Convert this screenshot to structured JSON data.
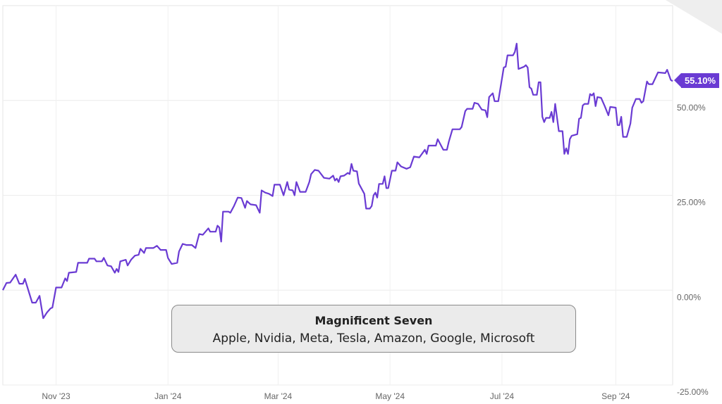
{
  "chart_data": {
    "type": "line",
    "title": "",
    "xlabel": "",
    "ylabel": "",
    "xlim": [
      "2023-10-03",
      "2024-10-02"
    ],
    "ylim": [
      -25,
      75
    ],
    "grid": true,
    "x_tick_labels": [
      {
        "date": "2023-11-01",
        "label": "Nov '23"
      },
      {
        "date": "2024-01-01",
        "label": "Jan '24"
      },
      {
        "date": "2024-03-01",
        "label": "Mar '24"
      },
      {
        "date": "2024-05-01",
        "label": "May '24"
      },
      {
        "date": "2024-07-01",
        "label": "Jul '24"
      },
      {
        "date": "2024-09-01",
        "label": "Sep '24"
      }
    ],
    "y_tick_labels": [
      {
        "value": 50,
        "label": "50.00%"
      },
      {
        "value": 25,
        "label": "25.00%"
      },
      {
        "value": 0,
        "label": "0.00%"
      },
      {
        "value": -25,
        "label": "-25.00%"
      }
    ],
    "last_value_label": "55.10%",
    "series_color": "#6a3bd3",
    "legend": {
      "title": "Magnificent Seven",
      "subtitle": "Apple, Nvidia, Meta, Tesla, Amazon, Google, Microsoft"
    },
    "series": [
      {
        "points": [
          [
            "2023-10-03",
            0
          ],
          [
            "2023-10-05",
            1.9
          ],
          [
            "2023-10-07",
            2
          ],
          [
            "2023-10-10",
            4.1
          ],
          [
            "2023-10-12",
            1.7
          ],
          [
            "2023-10-14",
            1.7
          ],
          [
            "2023-10-15",
            3
          ],
          [
            "2023-10-19",
            -3.3
          ],
          [
            "2023-10-21",
            -3.3
          ],
          [
            "2023-10-23",
            -1.5
          ],
          [
            "2023-10-25",
            -7.4
          ],
          [
            "2023-10-27",
            -5.9
          ],
          [
            "2023-10-29",
            -4.8
          ],
          [
            "2023-10-30",
            -4.6
          ],
          [
            "2023-11-01",
            0.7
          ],
          [
            "2023-11-04",
            0.7
          ],
          [
            "2023-11-06",
            3.1
          ],
          [
            "2023-11-07",
            2.4
          ],
          [
            "2023-11-08",
            4.6
          ],
          [
            "2023-11-12",
            4.8
          ],
          [
            "2023-11-13",
            7.2
          ],
          [
            "2023-11-15",
            7.2
          ],
          [
            "2023-11-18",
            7.2
          ],
          [
            "2023-11-19",
            8.3
          ],
          [
            "2023-11-22",
            8.3
          ],
          [
            "2023-11-23",
            7.6
          ],
          [
            "2023-11-26",
            7.6
          ],
          [
            "2023-11-27",
            8.5
          ],
          [
            "2023-11-29",
            6.5
          ],
          [
            "2023-12-01",
            6.3
          ],
          [
            "2023-12-03",
            4.6
          ],
          [
            "2023-12-04",
            5.6
          ],
          [
            "2023-12-05",
            4.8
          ],
          [
            "2023-12-06",
            7.6
          ],
          [
            "2023-12-09",
            8
          ],
          [
            "2023-12-10",
            6.5
          ],
          [
            "2023-12-12",
            8.1
          ],
          [
            "2023-12-14",
            9.1
          ],
          [
            "2023-12-16",
            9.3
          ],
          [
            "2023-12-17",
            10.9
          ],
          [
            "2023-12-19",
            9.8
          ],
          [
            "2023-12-20",
            11.1
          ],
          [
            "2023-12-24",
            11.1
          ],
          [
            "2023-12-26",
            11.7
          ],
          [
            "2023-12-28",
            10.6
          ],
          [
            "2023-12-31",
            10.6
          ],
          [
            "2024-01-01",
            8.5
          ],
          [
            "2024-01-03",
            6.9
          ],
          [
            "2024-01-06",
            7.2
          ],
          [
            "2024-01-07",
            10.2
          ],
          [
            "2024-01-09",
            12.2
          ],
          [
            "2024-01-11",
            11.9
          ],
          [
            "2024-01-14",
            11.9
          ],
          [
            "2024-01-16",
            11.1
          ],
          [
            "2024-01-18",
            14.8
          ],
          [
            "2024-01-20",
            14.6
          ],
          [
            "2024-01-23",
            16.3
          ],
          [
            "2024-01-24",
            15.4
          ],
          [
            "2024-01-27",
            15.4
          ],
          [
            "2024-01-28",
            17
          ],
          [
            "2024-01-29",
            16.5
          ],
          [
            "2024-01-30",
            12.8
          ],
          [
            "2024-01-31",
            20.7
          ],
          [
            "2024-02-03",
            20.7
          ],
          [
            "2024-02-04",
            20.4
          ],
          [
            "2024-02-06",
            22.2
          ],
          [
            "2024-02-08",
            24.4
          ],
          [
            "2024-02-10",
            24.3
          ],
          [
            "2024-02-12",
            21.7
          ],
          [
            "2024-02-13",
            23.5
          ],
          [
            "2024-02-15",
            22.6
          ],
          [
            "2024-02-18",
            22.4
          ],
          [
            "2024-02-20",
            20.4
          ],
          [
            "2024-02-21",
            26.3
          ],
          [
            "2024-02-23",
            25.7
          ],
          [
            "2024-02-25",
            25.4
          ],
          [
            "2024-02-27",
            24.8
          ],
          [
            "2024-02-28",
            27.8
          ],
          [
            "2024-03-02",
            27.8
          ],
          [
            "2024-03-04",
            25
          ],
          [
            "2024-03-06",
            28.5
          ],
          [
            "2024-03-07",
            26.5
          ],
          [
            "2024-03-09",
            26.3
          ],
          [
            "2024-03-10",
            25
          ],
          [
            "2024-03-11",
            28.5
          ],
          [
            "2024-03-13",
            25.9
          ],
          [
            "2024-03-16",
            25.9
          ],
          [
            "2024-03-18",
            28.5
          ],
          [
            "2024-03-19",
            30.6
          ],
          [
            "2024-03-21",
            31.7
          ],
          [
            "2024-03-23",
            31.5
          ],
          [
            "2024-03-26",
            29.6
          ],
          [
            "2024-03-29",
            29.4
          ],
          [
            "2024-03-31",
            30.2
          ],
          [
            "2024-04-01",
            28.9
          ],
          [
            "2024-04-02",
            29.4
          ],
          [
            "2024-04-03",
            28.5
          ],
          [
            "2024-04-04",
            30
          ],
          [
            "2024-04-06",
            30.2
          ],
          [
            "2024-04-08",
            30.9
          ],
          [
            "2024-04-09",
            30.6
          ],
          [
            "2024-04-10",
            33.3
          ],
          [
            "2024-04-11",
            31.5
          ],
          [
            "2024-04-13",
            31.3
          ],
          [
            "2024-04-14",
            28.1
          ],
          [
            "2024-04-17",
            25.4
          ],
          [
            "2024-04-18",
            21.5
          ],
          [
            "2024-04-20",
            21.5
          ],
          [
            "2024-04-21",
            22.2
          ],
          [
            "2024-04-22",
            25
          ],
          [
            "2024-04-23",
            25.7
          ],
          [
            "2024-04-24",
            24.4
          ],
          [
            "2024-04-25",
            28
          ],
          [
            "2024-04-27",
            28
          ],
          [
            "2024-04-28",
            30
          ],
          [
            "2024-04-29",
            26.9
          ],
          [
            "2024-04-30",
            26.9
          ],
          [
            "2024-05-02",
            31.5
          ],
          [
            "2024-05-04",
            31.5
          ],
          [
            "2024-05-05",
            33.7
          ],
          [
            "2024-05-07",
            32.6
          ],
          [
            "2024-05-10",
            32
          ],
          [
            "2024-05-12",
            32.4
          ],
          [
            "2024-05-14",
            35.2
          ],
          [
            "2024-05-17",
            35
          ],
          [
            "2024-05-20",
            37
          ],
          [
            "2024-05-21",
            35.9
          ],
          [
            "2024-05-22",
            38.1
          ],
          [
            "2024-05-26",
            38.1
          ],
          [
            "2024-05-27",
            39.8
          ],
          [
            "2024-05-30",
            37
          ],
          [
            "2024-06-01",
            37
          ],
          [
            "2024-06-02",
            39.1
          ],
          [
            "2024-06-04",
            42.4
          ],
          [
            "2024-06-08",
            42.4
          ],
          [
            "2024-06-09",
            43
          ],
          [
            "2024-06-11",
            47.2
          ],
          [
            "2024-06-12",
            47.8
          ],
          [
            "2024-06-15",
            47.8
          ],
          [
            "2024-06-16",
            49.4
          ],
          [
            "2024-06-18",
            49.1
          ],
          [
            "2024-06-20",
            47.6
          ],
          [
            "2024-06-22",
            47.4
          ],
          [
            "2024-06-23",
            45.6
          ],
          [
            "2024-06-24",
            50.9
          ],
          [
            "2024-06-26",
            51.9
          ],
          [
            "2024-06-27",
            49.8
          ],
          [
            "2024-06-29",
            49.8
          ],
          [
            "2024-07-02",
            58.7
          ],
          [
            "2024-07-03",
            58.9
          ],
          [
            "2024-07-04",
            61.9
          ],
          [
            "2024-07-07",
            61.9
          ],
          [
            "2024-07-08",
            62.8
          ],
          [
            "2024-07-09",
            65
          ],
          [
            "2024-07-10",
            58.3
          ],
          [
            "2024-07-13",
            58.9
          ],
          [
            "2024-07-14",
            59.3
          ],
          [
            "2024-07-15",
            58.7
          ],
          [
            "2024-07-16",
            53.5
          ],
          [
            "2024-07-17",
            53.1
          ],
          [
            "2024-07-18",
            51.5
          ],
          [
            "2024-07-20",
            51.5
          ],
          [
            "2024-07-21",
            54.8
          ],
          [
            "2024-07-22",
            54.8
          ],
          [
            "2024-07-23",
            45.7
          ],
          [
            "2024-07-24",
            44.3
          ],
          [
            "2024-07-25",
            45.4
          ],
          [
            "2024-07-27",
            45.4
          ],
          [
            "2024-07-28",
            47
          ],
          [
            "2024-07-29",
            44.3
          ],
          [
            "2024-07-30",
            49.1
          ],
          [
            "2024-08-01",
            41.9
          ],
          [
            "2024-08-03",
            41.9
          ],
          [
            "2024-08-04",
            35.9
          ],
          [
            "2024-08-05",
            37.4
          ],
          [
            "2024-08-06",
            35.9
          ],
          [
            "2024-08-07",
            39.8
          ],
          [
            "2024-08-08",
            40.7
          ],
          [
            "2024-08-11",
            41.1
          ],
          [
            "2024-08-12",
            45.2
          ],
          [
            "2024-08-13",
            45.4
          ],
          [
            "2024-08-14",
            48.7
          ],
          [
            "2024-08-15",
            49.1
          ],
          [
            "2024-08-17",
            49.1
          ],
          [
            "2024-08-18",
            51.7
          ],
          [
            "2024-08-19",
            51.3
          ],
          [
            "2024-08-20",
            51.9
          ],
          [
            "2024-08-21",
            48.5
          ],
          [
            "2024-08-22",
            50.9
          ],
          [
            "2024-08-24",
            50.7
          ],
          [
            "2024-08-26",
            48.5
          ],
          [
            "2024-08-28",
            46.1
          ],
          [
            "2024-08-29",
            48.3
          ],
          [
            "2024-09-01",
            48.1
          ],
          [
            "2024-09-02",
            43.5
          ],
          [
            "2024-09-03",
            43.5
          ],
          [
            "2024-09-04",
            45.7
          ],
          [
            "2024-09-05",
            40.4
          ],
          [
            "2024-09-07",
            40.4
          ],
          [
            "2024-09-09",
            43.9
          ],
          [
            "2024-09-10",
            48.1
          ],
          [
            "2024-09-12",
            50.4
          ],
          [
            "2024-09-14",
            50.4
          ],
          [
            "2024-09-15",
            49.4
          ],
          [
            "2024-09-16",
            49.8
          ],
          [
            "2024-09-18",
            55
          ],
          [
            "2024-09-19",
            54.3
          ],
          [
            "2024-09-21",
            54.3
          ],
          [
            "2024-09-24",
            57.4
          ],
          [
            "2024-09-28",
            57.2
          ],
          [
            "2024-09-29",
            58.1
          ],
          [
            "2024-10-01",
            55.4
          ],
          [
            "2024-10-02",
            55.1
          ]
        ]
      }
    ]
  }
}
